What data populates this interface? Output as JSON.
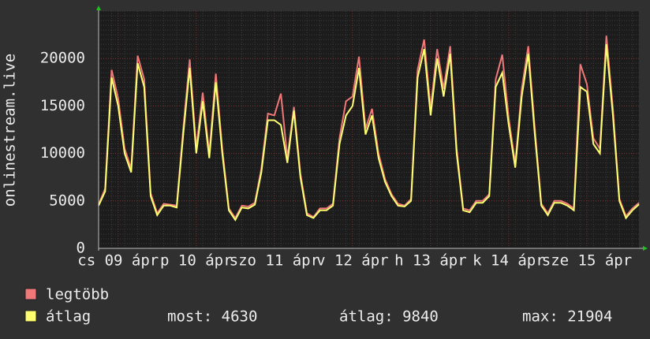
{
  "chart_data": {
    "type": "line",
    "y_label": "onlinestream.live",
    "categories": [
      null,
      null,
      null,
      "cs 09 ápr",
      null,
      null,
      null,
      null,
      null,
      null,
      null,
      null,
      null,
      null,
      null,
      "p 10 ápr",
      null,
      null,
      null,
      null,
      null,
      null,
      null,
      null,
      null,
      null,
      null,
      "szo 11 ápr",
      null,
      null,
      null,
      null,
      null,
      null,
      null,
      null,
      null,
      null,
      null,
      "v 12 ápr",
      null,
      null,
      null,
      null,
      null,
      null,
      null,
      null,
      null,
      null,
      null,
      "h 13 ápr",
      null,
      null,
      null,
      null,
      null,
      null,
      null,
      null,
      null,
      null,
      null,
      "k 14 ápr",
      null,
      null,
      null,
      null,
      null,
      null,
      null,
      null,
      null,
      null,
      null,
      "sze 15 ápr",
      null,
      null,
      null,
      null,
      null,
      null,
      null,
      null
    ],
    "series": [
      {
        "name": "legtöbb",
        "color": "#f07878",
        "values": [
          4600,
          6300,
          18800,
          15800,
          10500,
          8400,
          20300,
          17800,
          5800,
          3700,
          4700,
          4600,
          4500,
          12600,
          19900,
          10500,
          16400,
          10000,
          18400,
          10500,
          4200,
          3200,
          4500,
          4400,
          4800,
          8400,
          14200,
          14000,
          16300,
          9500,
          14900,
          7900,
          3700,
          3300,
          4200,
          4200,
          4700,
          11600,
          15500,
          16000,
          20200,
          12600,
          14700,
          10000,
          7300,
          5700,
          4700,
          4500,
          5200,
          18800,
          22000,
          14700,
          21000,
          16800,
          21300,
          10500,
          4200,
          4000,
          5000,
          5000,
          5700,
          17800,
          20400,
          13700,
          8900,
          16800,
          21300,
          12600,
          4700,
          3700,
          5000,
          5000,
          4700,
          4200,
          19400,
          17300,
          11600,
          10500,
          22400,
          14700,
          5200,
          3400,
          4200,
          4800
        ]
      },
      {
        "name": "átlag",
        "color": "#ffff70",
        "values": [
          4500,
          6000,
          18000,
          15000,
          10000,
          8000,
          19500,
          17000,
          5500,
          3500,
          4500,
          4500,
          4300,
          12000,
          19000,
          10000,
          15500,
          9500,
          17500,
          10000,
          4000,
          3000,
          4300,
          4200,
          4600,
          8000,
          13500,
          13500,
          13000,
          9000,
          14500,
          7500,
          3500,
          3200,
          4000,
          4000,
          4500,
          11000,
          14000,
          15000,
          19000,
          12000,
          14000,
          9500,
          7000,
          5500,
          4500,
          4400,
          5000,
          18000,
          21000,
          14000,
          20000,
          16000,
          20500,
          10000,
          4000,
          3800,
          4800,
          4800,
          5500,
          17000,
          18500,
          13000,
          8500,
          16000,
          20500,
          12000,
          4500,
          3500,
          4800,
          4800,
          4500,
          4000,
          17000,
          16500,
          11000,
          10000,
          21500,
          14000,
          5000,
          3200,
          4000,
          4630
        ]
      }
    ],
    "ylim": [
      0,
      25000
    ],
    "yticks": [
      0,
      5000,
      10000,
      15000,
      20000
    ],
    "grid": true,
    "stats": [
      "most: 4630",
      "átlag: 9840",
      "max: 21904"
    ]
  }
}
